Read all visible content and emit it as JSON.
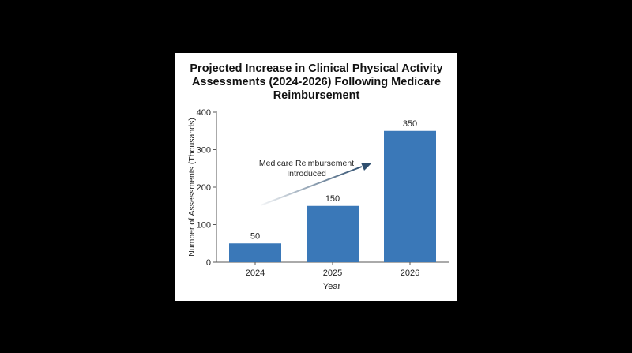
{
  "chart_data": {
    "type": "bar",
    "title_lines": [
      "Projected Increase in Clinical Physical Activity",
      "Assessments (2024-2026) Following Medicare",
      "Reimbursement"
    ],
    "categories": [
      "2024",
      "2025",
      "2026"
    ],
    "values": [
      50,
      150,
      350
    ],
    "data_labels": [
      "50",
      "150",
      "350"
    ],
    "xlabel": "Year",
    "ylabel": "Number of Assessments (Thousands)",
    "ylim": [
      0,
      400
    ],
    "yticks": [
      "0",
      "100",
      "200",
      "300",
      "400"
    ],
    "grid": false,
    "bar_color": "#3a78b8",
    "annotation": {
      "lines": [
        "Medicare Reimbursement",
        "Introduced"
      ],
      "arrow_color": "#2f4f6f"
    }
  }
}
